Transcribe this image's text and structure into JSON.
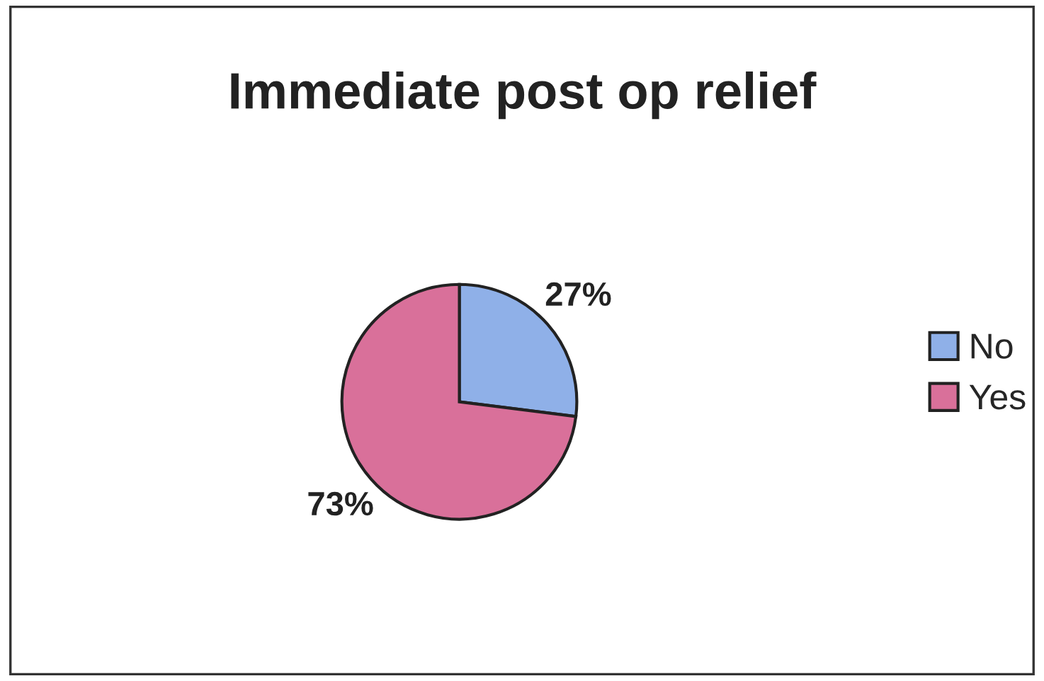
{
  "chart_data": {
    "type": "pie",
    "title": "Immediate post op relief",
    "categories": [
      "No",
      "Yes"
    ],
    "values": [
      27,
      73
    ],
    "colors": [
      "#8fb0e8",
      "#d9709a"
    ],
    "value_labels": [
      "27%",
      "73%"
    ],
    "legend": "right"
  }
}
